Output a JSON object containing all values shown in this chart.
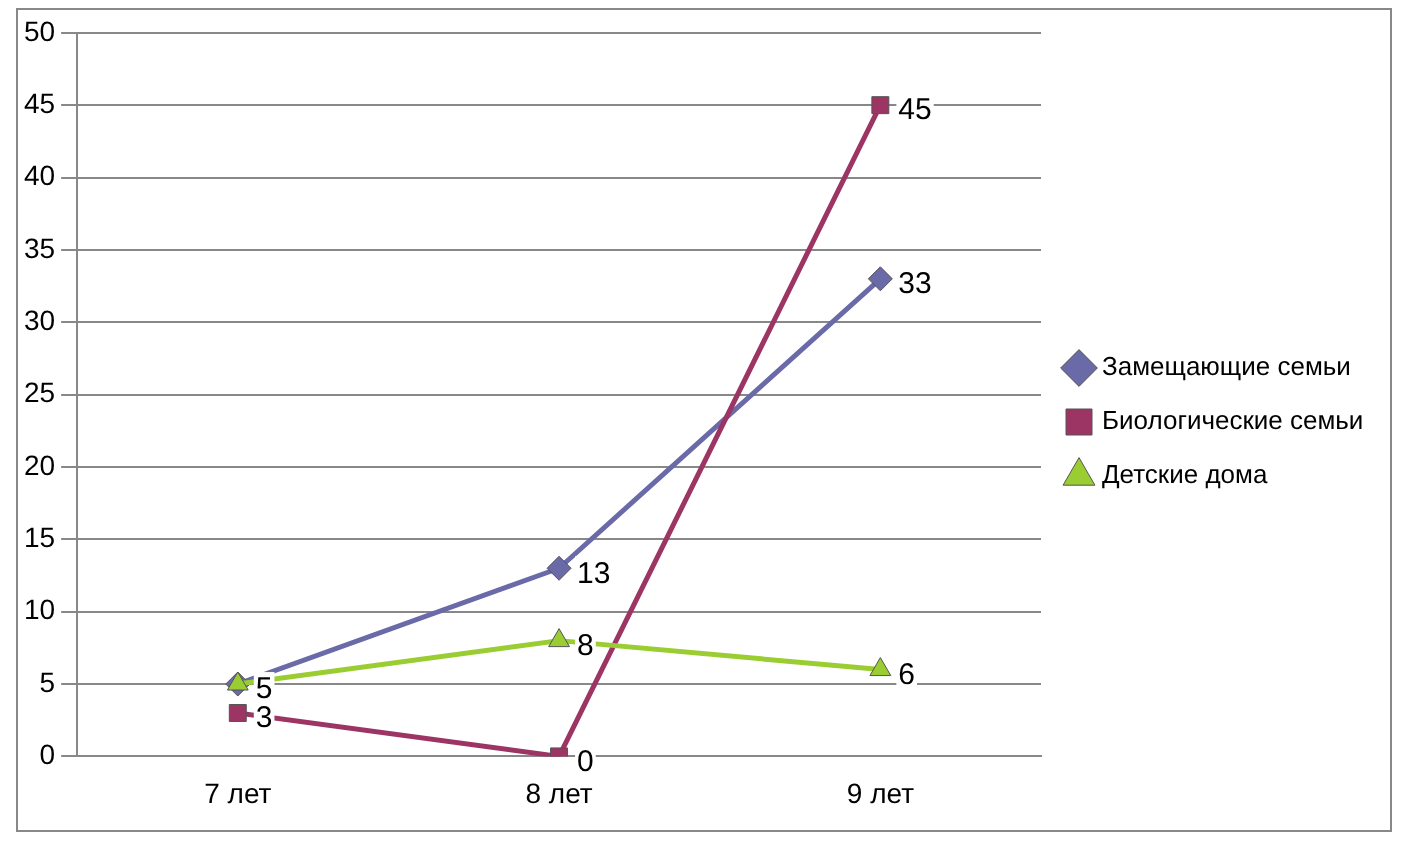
{
  "chart_data": {
    "type": "line",
    "categories": [
      "7 лет",
      "8 лет",
      "9 лет"
    ],
    "series": [
      {
        "name": "Замещающие семьи",
        "color": "#6a6aa8",
        "values": [
          5,
          13,
          33
        ],
        "value_labels": [
          "5",
          "13",
          "33"
        ],
        "marker": "diamond"
      },
      {
        "name": "Биологические семьи",
        "color": "#9c3464",
        "values": [
          3,
          0,
          45
        ],
        "value_labels": [
          "3",
          "0",
          "45"
        ],
        "marker": "square"
      },
      {
        "name": "Детские дома",
        "color": "#9acd32",
        "values": [
          5,
          8,
          6
        ],
        "value_labels": [
          null,
          "8",
          "6"
        ],
        "marker": "triangle"
      }
    ],
    "ylim": [
      0,
      50
    ],
    "yticks": [
      0,
      5,
      10,
      15,
      20,
      25,
      30,
      35,
      40,
      45,
      50
    ],
    "grid": "y",
    "legend": "right",
    "line_style": "solid"
  }
}
